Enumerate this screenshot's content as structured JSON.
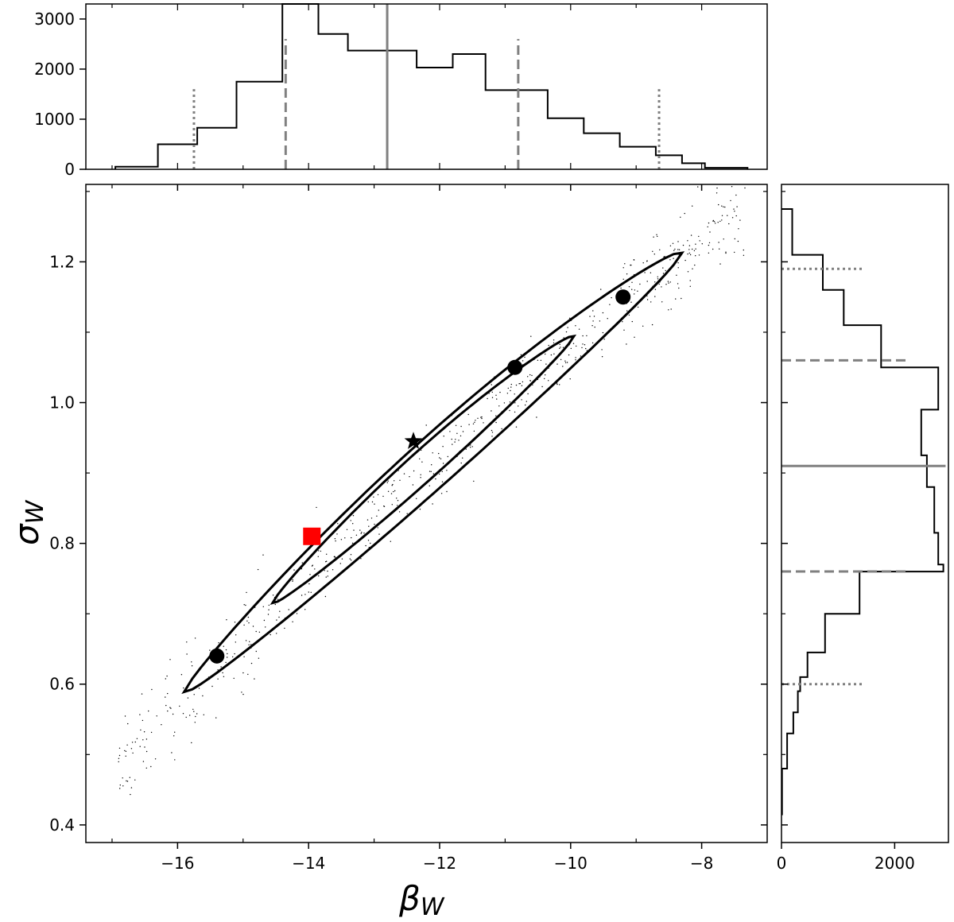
{
  "chart_data": [
    {
      "panel": "joint",
      "type": "scatter",
      "xlabel": "β",
      "xlabel_sub": "W",
      "ylabel": "σ",
      "ylabel_sub": "W",
      "xlim": [
        -17.4,
        -7.0
      ],
      "ylim": [
        0.375,
        1.31
      ],
      "xticks": [
        -16,
        -14,
        -12,
        -10,
        -8
      ],
      "xtick_labels": [
        "−16",
        "−14",
        "−12",
        "−10",
        "−8"
      ],
      "yticks": [
        0.4,
        0.6,
        0.8,
        1.0,
        1.2
      ],
      "ytick_labels": [
        "0.4",
        "0.6",
        "0.8",
        "1.0",
        "1.2"
      ],
      "contours": [
        {
          "level": "inner",
          "center": [
            -12.4,
            0.94
          ],
          "extent_x": [
            -14.55,
            -9.95
          ]
        },
        {
          "level": "outer",
          "center": [
            -12.0,
            0.88
          ],
          "extent_x": [
            -15.9,
            -8.3
          ]
        }
      ],
      "markers": [
        {
          "shape": "circle",
          "color": "#000000",
          "x": -15.4,
          "y": 0.64
        },
        {
          "shape": "circle",
          "color": "#000000",
          "x": -10.85,
          "y": 1.05
        },
        {
          "shape": "circle",
          "color": "#000000",
          "x": -9.2,
          "y": 1.15
        },
        {
          "shape": "star",
          "color": "#000000",
          "x": -12.4,
          "y": 0.945
        },
        {
          "shape": "square",
          "color": "#ff0000",
          "x": -13.95,
          "y": 0.81
        }
      ],
      "scatter_color": "#000000"
    },
    {
      "panel": "top-histogram",
      "type": "bar",
      "orientation": "vertical",
      "xlim": [
        -17.4,
        -7.0
      ],
      "ylim": [
        0,
        3300
      ],
      "yticks": [
        0,
        1000,
        2000,
        3000
      ],
      "ytick_labels": [
        "0",
        "1000",
        "2000",
        "3000"
      ],
      "bin_edges": [
        -16.95,
        -16.3,
        -15.7,
        -15.1,
        -14.4,
        -13.85,
        -13.4,
        -12.95,
        -12.35,
        -11.8,
        -11.3,
        -10.8,
        -10.35,
        -9.8,
        -9.25,
        -8.7,
        -8.3,
        -7.95,
        -7.3
      ],
      "counts": [
        50,
        500,
        830,
        1750,
        3300,
        2700,
        2370,
        2370,
        2030,
        2300,
        1580,
        1580,
        1020,
        720,
        450,
        280,
        120,
        30
      ],
      "lines": [
        {
          "value": -15.75,
          "style": "dotted",
          "height": 1600
        },
        {
          "value": -14.35,
          "style": "dashed",
          "height": 2600
        },
        {
          "value": -12.8,
          "style": "solid",
          "height": 3300
        },
        {
          "value": -10.8,
          "style": "dashed",
          "height": 2600
        },
        {
          "value": -8.65,
          "style": "dotted",
          "height": 1600
        }
      ]
    },
    {
      "panel": "right-histogram",
      "type": "bar",
      "orientation": "horizontal",
      "ylim": [
        0.375,
        1.31
      ],
      "xlim": [
        0,
        2950
      ],
      "xticks": [
        0,
        2000
      ],
      "xtick_labels": [
        "0",
        "2000"
      ],
      "bin_edges": [
        0.415,
        0.48,
        0.53,
        0.56,
        0.59,
        0.61,
        0.645,
        0.7,
        0.76,
        0.77,
        0.815,
        0.88,
        0.925,
        0.99,
        1.05,
        1.11,
        1.16,
        1.21,
        1.275
      ],
      "counts": [
        10,
        100,
        210,
        290,
        330,
        460,
        770,
        1380,
        2860,
        2770,
        2700,
        2570,
        2470,
        2770,
        1760,
        1100,
        730,
        190
      ],
      "lines": [
        {
          "value": 0.6,
          "style": "dotted",
          "length": 1450
        },
        {
          "value": 0.76,
          "style": "dashed",
          "length": 2200
        },
        {
          "value": 0.91,
          "style": "solid",
          "length": 2900
        },
        {
          "value": 1.06,
          "style": "dashed",
          "length": 2200
        },
        {
          "value": 1.19,
          "style": "dotted",
          "length": 1450
        }
      ]
    }
  ]
}
